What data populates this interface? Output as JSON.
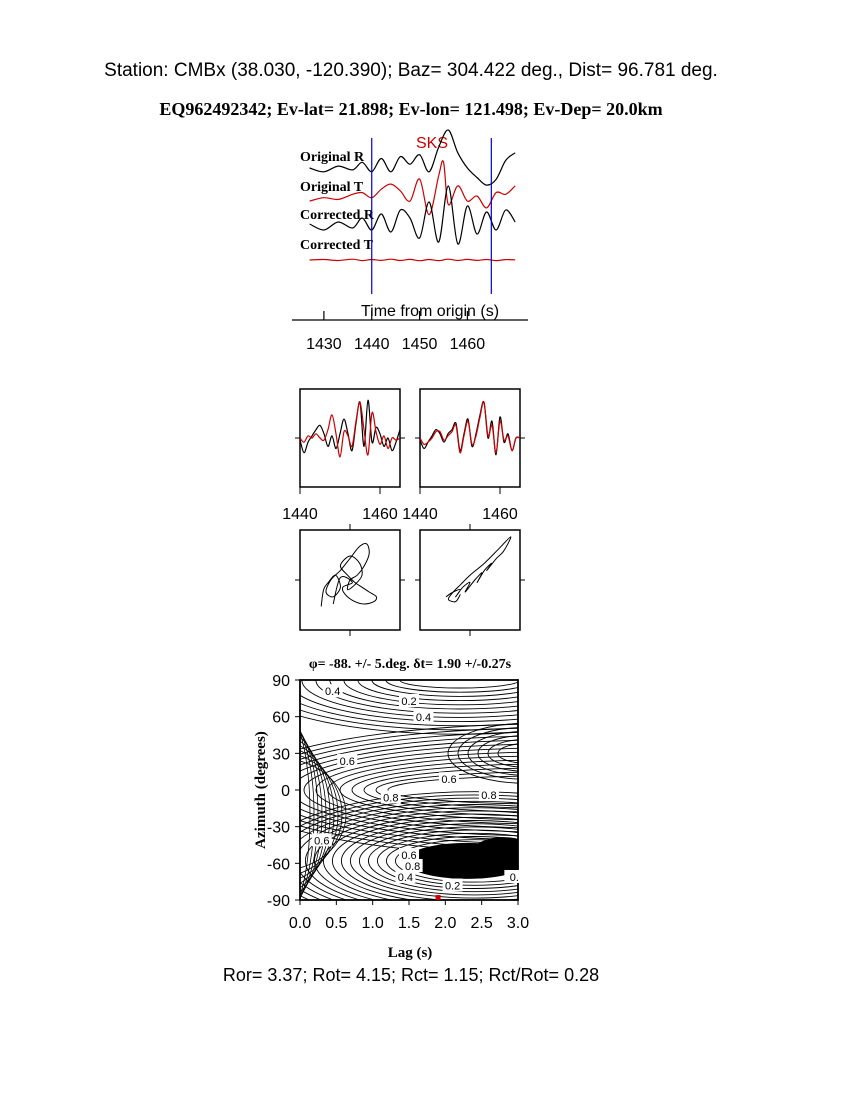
{
  "header": {
    "station_line": "Station: CMBx (38.030, -120.390); Baz=  304.422 deg., Dist=   96.781 deg.",
    "event_line": "EQ962492342; Ev-lat=  21.898; Ev-lon= 121.498; Ev-Dep= 20.0km"
  },
  "chart_data": [
    {
      "type": "line",
      "panel": "seismogram-traces",
      "phase_label": "SKS",
      "xlabel": "Time from origin (s)",
      "xticks": [
        "1430",
        "1440",
        "1450",
        "1460"
      ],
      "xlim": [
        1425,
        1471
      ],
      "window_markers": [
        1440,
        1465
      ],
      "series": [
        {
          "name": "Original R",
          "color": "#000000",
          "x": [
            1427,
            1430,
            1433,
            1436,
            1438,
            1440,
            1442,
            1444,
            1446,
            1448,
            1450,
            1452,
            1454,
            1456,
            1458,
            1460,
            1462,
            1464,
            1466,
            1468,
            1470
          ],
          "y": [
            0.0,
            -0.1,
            0.05,
            -0.05,
            0.15,
            -0.1,
            0.25,
            -0.1,
            0.3,
            0.1,
            0.35,
            -0.1,
            0.55,
            1.0,
            0.4,
            0.0,
            -0.25,
            -0.45,
            -0.3,
            0.2,
            0.4
          ]
        },
        {
          "name": "Original T",
          "color": "#cc0000",
          "x": [
            1427,
            1430,
            1433,
            1436,
            1438,
            1440,
            1442,
            1444,
            1446,
            1448,
            1450,
            1452,
            1454,
            1455,
            1456,
            1458,
            1460,
            1462,
            1464,
            1466,
            1468,
            1470
          ],
          "y": [
            -0.15,
            -0.05,
            -0.1,
            0.05,
            0.1,
            -0.05,
            0.2,
            0.35,
            0.15,
            -0.15,
            0.5,
            -0.55,
            0.6,
            1.0,
            -0.25,
            0.3,
            -0.15,
            0.0,
            -0.35,
            0.1,
            0.05,
            0.3
          ]
        },
        {
          "name": "Corrected R",
          "color": "#000000",
          "x": [
            1427,
            1430,
            1433,
            1436,
            1438,
            1440,
            1442,
            1444,
            1446,
            1448,
            1450,
            1452,
            1454,
            1456,
            1458,
            1460,
            1462,
            1464,
            1466,
            1468,
            1470
          ],
          "y": [
            0.05,
            -0.1,
            0.1,
            -0.05,
            0.2,
            -0.1,
            0.3,
            -0.15,
            0.4,
            0.2,
            -0.3,
            0.6,
            -0.4,
            1.0,
            -0.45,
            0.5,
            -0.2,
            0.35,
            -0.1,
            0.4,
            0.1
          ]
        },
        {
          "name": "Corrected T",
          "color": "#cc0000",
          "x": [
            1427,
            1430,
            1433,
            1436,
            1438,
            1440,
            1442,
            1444,
            1446,
            1448,
            1450,
            1452,
            1454,
            1456,
            1458,
            1460,
            1462,
            1464,
            1466,
            1468,
            1470
          ],
          "y": [
            0.0,
            0.05,
            -0.05,
            0.08,
            -0.06,
            0.05,
            -0.04,
            0.08,
            -0.05,
            0.06,
            -0.07,
            0.05,
            -0.06,
            0.08,
            -0.05,
            0.06,
            -0.04,
            0.05,
            -0.06,
            0.04,
            0.02
          ]
        }
      ]
    },
    {
      "type": "line",
      "panel": "waveform-fit-left",
      "xticks": [
        "1440",
        "1460"
      ],
      "xlim": [
        1440,
        1465
      ],
      "series": [
        {
          "color": "#000000",
          "x": [
            1440,
            1441,
            1442,
            1443,
            1444,
            1445,
            1446,
            1447,
            1448,
            1449,
            1450,
            1451,
            1452,
            1453,
            1454,
            1455,
            1456,
            1457,
            1458,
            1459,
            1460,
            1461,
            1462,
            1463,
            1464,
            1465
          ],
          "y": [
            -0.05,
            -0.35,
            -0.1,
            0.05,
            0.2,
            0.3,
            0.1,
            -0.2,
            0.05,
            -0.25,
            0.1,
            0.45,
            0.1,
            -0.3,
            0.35,
            0.85,
            -0.2,
            0.9,
            -0.1,
            0.25,
            0.1,
            -0.2,
            0.0,
            -0.3,
            -0.1,
            0.2
          ]
        },
        {
          "color": "#cc0000",
          "x": [
            1440,
            1441,
            1442,
            1443,
            1444,
            1445,
            1446,
            1447,
            1448,
            1449,
            1450,
            1451,
            1452,
            1453,
            1454,
            1455,
            1456,
            1457,
            1458,
            1459,
            1460,
            1461,
            1462,
            1463,
            1464,
            1465
          ],
          "y": [
            0.0,
            -0.1,
            0.05,
            0.0,
            0.1,
            0.0,
            -0.05,
            0.2,
            0.55,
            0.1,
            -0.45,
            0.15,
            0.05,
            -0.2,
            0.4,
            0.85,
            0.2,
            -0.4,
            0.6,
            0.15,
            -0.15,
            0.05,
            -0.25,
            0.0,
            -0.05,
            0.0
          ]
        }
      ]
    },
    {
      "type": "line",
      "panel": "waveform-fit-right",
      "xticks": [
        "1440",
        "1460"
      ],
      "xlim": [
        1440,
        1465
      ],
      "series": [
        {
          "color": "#000000",
          "x": [
            1440,
            1441,
            1442,
            1443,
            1444,
            1445,
            1446,
            1447,
            1448,
            1449,
            1450,
            1451,
            1452,
            1453,
            1454,
            1455,
            1456,
            1457,
            1458,
            1459,
            1460,
            1461,
            1462,
            1463,
            1464,
            1465
          ],
          "y": [
            -0.05,
            -0.25,
            -0.1,
            0.05,
            0.2,
            0.1,
            -0.1,
            0.1,
            0.2,
            0.35,
            -0.3,
            0.1,
            0.45,
            -0.2,
            0.1,
            0.55,
            0.85,
            0.0,
            0.4,
            -0.4,
            0.5,
            -0.1,
            0.1,
            -0.3,
            0.0,
            0.0
          ]
        },
        {
          "color": "#cc0000",
          "x": [
            1440,
            1441,
            1442,
            1443,
            1444,
            1445,
            1446,
            1447,
            1448,
            1449,
            1450,
            1451,
            1452,
            1453,
            1454,
            1455,
            1456,
            1457,
            1458,
            1459,
            1460,
            1461,
            1462,
            1463,
            1464,
            1465
          ],
          "y": [
            0.0,
            -0.15,
            -0.1,
            0.0,
            0.15,
            0.15,
            -0.05,
            0.05,
            0.15,
            0.3,
            -0.35,
            0.05,
            0.4,
            -0.15,
            0.05,
            0.5,
            0.85,
            0.05,
            0.3,
            -0.35,
            0.4,
            -0.05,
            0.05,
            -0.3,
            0.0,
            0.0
          ]
        }
      ]
    },
    {
      "type": "line",
      "panel": "particle-motion-left",
      "series": [
        {
          "color": "#000000",
          "x": [
            -0.6,
            -0.55,
            -0.45,
            -0.3,
            -0.2,
            -0.35,
            -0.5,
            -0.4,
            -0.2,
            0.0,
            0.2,
            0.35,
            0.4,
            0.3,
            0.15,
            0.0,
            -0.05,
            0.1,
            0.25,
            0.2,
            0.0,
            -0.2,
            -0.05,
            0.1,
            0.25,
            0.4,
            0.55,
            0.5,
            0.3,
            0.1,
            -0.1,
            -0.15,
            0.05,
            -0.2,
            -0.35
          ],
          "y": [
            -0.55,
            -0.2,
            -0.05,
            0.1,
            -0.15,
            -0.35,
            -0.25,
            0.0,
            0.2,
            0.45,
            0.7,
            0.75,
            0.55,
            0.3,
            0.1,
            0.0,
            -0.2,
            -0.1,
            0.1,
            0.35,
            0.5,
            0.3,
            0.1,
            -0.05,
            -0.15,
            -0.25,
            -0.35,
            -0.45,
            -0.5,
            -0.45,
            -0.3,
            -0.15,
            -0.05,
            0.05,
            -0.5
          ]
        }
      ]
    },
    {
      "type": "line",
      "panel": "particle-motion-right",
      "series": [
        {
          "color": "#000000",
          "x": [
            -0.5,
            -0.35,
            -0.2,
            -0.3,
            -0.15,
            0.0,
            -0.1,
            0.1,
            0.25,
            0.15,
            0.3,
            0.45,
            0.35,
            0.55,
            0.7,
            0.85,
            0.6,
            0.3,
            0.0,
            -0.2,
            -0.35,
            -0.45,
            -0.3,
            -0.2
          ],
          "y": [
            -0.35,
            -0.25,
            -0.2,
            -0.35,
            -0.15,
            -0.05,
            -0.25,
            0.0,
            0.15,
            -0.05,
            0.2,
            0.35,
            0.2,
            0.45,
            0.6,
            0.9,
            0.65,
            0.35,
            0.1,
            -0.1,
            -0.25,
            -0.4,
            -0.45,
            -0.3
          ]
        }
      ]
    },
    {
      "type": "heatmap",
      "panel": "splitting-grid-search",
      "title": "φ= -88. +/- 5.deg. δt= 1.90 +/-0.27s",
      "xlabel": "Lag (s)",
      "ylabel": "Azimuth (degrees)",
      "xlim": [
        0.0,
        3.0
      ],
      "ylim": [
        -90,
        90
      ],
      "xticks": [
        "0.0",
        "0.5",
        "1.0",
        "1.5",
        "2.0",
        "2.5",
        "3.0"
      ],
      "yticks": [
        "90",
        "60",
        "30",
        "0",
        "-30",
        "-60",
        "-90"
      ],
      "contour_labels": [
        "0.4",
        "0.2",
        "0.4",
        "0.6",
        "0.6",
        "0.8",
        "0.8",
        "0.6",
        "0.8",
        "0.6",
        "0.4",
        "0.2",
        "0."
      ],
      "best_fit": {
        "lag": 1.9,
        "azimuth": -88
      }
    }
  ],
  "footer": {
    "ratio_line": "Ror= 3.37; Rot= 4.15; Rct= 1.15; Rct/Rot= 0.28"
  },
  "colors": {
    "black": "#000000",
    "red": "#cc0000",
    "blue": "#0000cc"
  }
}
